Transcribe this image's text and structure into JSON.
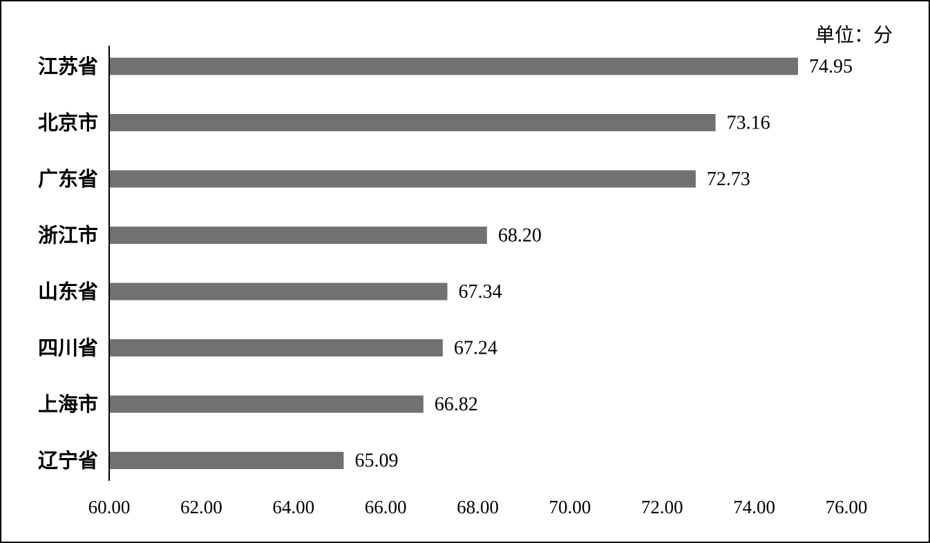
{
  "chart_data": {
    "type": "bar",
    "orientation": "horizontal",
    "unit_label": "单位：分",
    "categories": [
      "江苏省",
      "北京市",
      "广东省",
      "浙江市",
      "山东省",
      "四川省",
      "上海市",
      "辽宁省"
    ],
    "values": [
      74.95,
      73.16,
      72.73,
      68.2,
      67.34,
      67.24,
      66.82,
      65.09
    ],
    "value_labels": [
      "74.95",
      "73.16",
      "72.73",
      "68.20",
      "67.34",
      "67.24",
      "66.82",
      "65.09"
    ],
    "xlim": [
      60,
      76
    ],
    "x_ticks": [
      "60.00",
      "62.00",
      "64.00",
      "66.00",
      "68.00",
      "70.00",
      "72.00",
      "74.00",
      "76.00"
    ],
    "bar_color": "#717171",
    "grid": false
  }
}
